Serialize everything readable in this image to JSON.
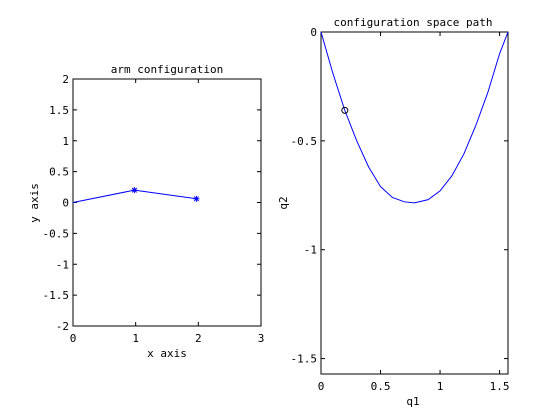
{
  "chart_data": [
    {
      "type": "line",
      "title": "arm configuration",
      "xlabel": "x axis",
      "ylabel": "y axis",
      "xlim": [
        0,
        3
      ],
      "ylim": [
        -2,
        2
      ],
      "xticks": [
        0,
        1,
        2,
        3
      ],
      "yticks": [
        -2,
        -1.5,
        -1,
        -0.5,
        0,
        0.5,
        1,
        1.5,
        2
      ],
      "xtick_labels": [
        "0",
        "1",
        "2",
        "3"
      ],
      "ytick_labels": [
        "-2",
        "-1.5",
        "-1",
        "-0.5",
        "0",
        "0.5",
        "1",
        "1.5",
        "2"
      ],
      "grid": false,
      "line_color": "#0000ff",
      "series": [
        {
          "x": [
            0,
            0.98,
            1.97
          ],
          "y": [
            0,
            0.2,
            0.06
          ],
          "markers": [
            "none",
            "asterisk",
            "asterisk"
          ]
        }
      ]
    },
    {
      "type": "line",
      "title": "configuration space path",
      "xlabel": "q1",
      "ylabel": "q2",
      "xlim": [
        0,
        1.5708
      ],
      "ylim": [
        -1.5708,
        0
      ],
      "xticks": [
        0,
        0.5,
        1,
        1.5
      ],
      "yticks": [
        -1.5,
        -1,
        -0.5,
        0
      ],
      "xtick_labels": [
        "0",
        "0.5",
        "1",
        "1.5"
      ],
      "ytick_labels": [
        "-1.5",
        "-1",
        "-0.5",
        "0"
      ],
      "grid": false,
      "line_color": "#0000ff",
      "series": [
        {
          "curve": "parabola",
          "x": [
            0,
            0.1,
            0.2,
            0.3,
            0.4,
            0.5,
            0.6,
            0.7,
            0.785,
            0.9,
            1.0,
            1.1,
            1.2,
            1.3,
            1.4,
            1.5,
            1.5708
          ],
          "y": [
            0,
            -0.19,
            -0.36,
            -0.5,
            -0.62,
            -0.71,
            -0.76,
            -0.78,
            -0.785,
            -0.77,
            -0.73,
            -0.66,
            -0.56,
            -0.43,
            -0.28,
            -0.1,
            0
          ]
        }
      ],
      "highlight_point": {
        "x": 0.2,
        "y": -0.36,
        "marker": "circle"
      }
    }
  ]
}
